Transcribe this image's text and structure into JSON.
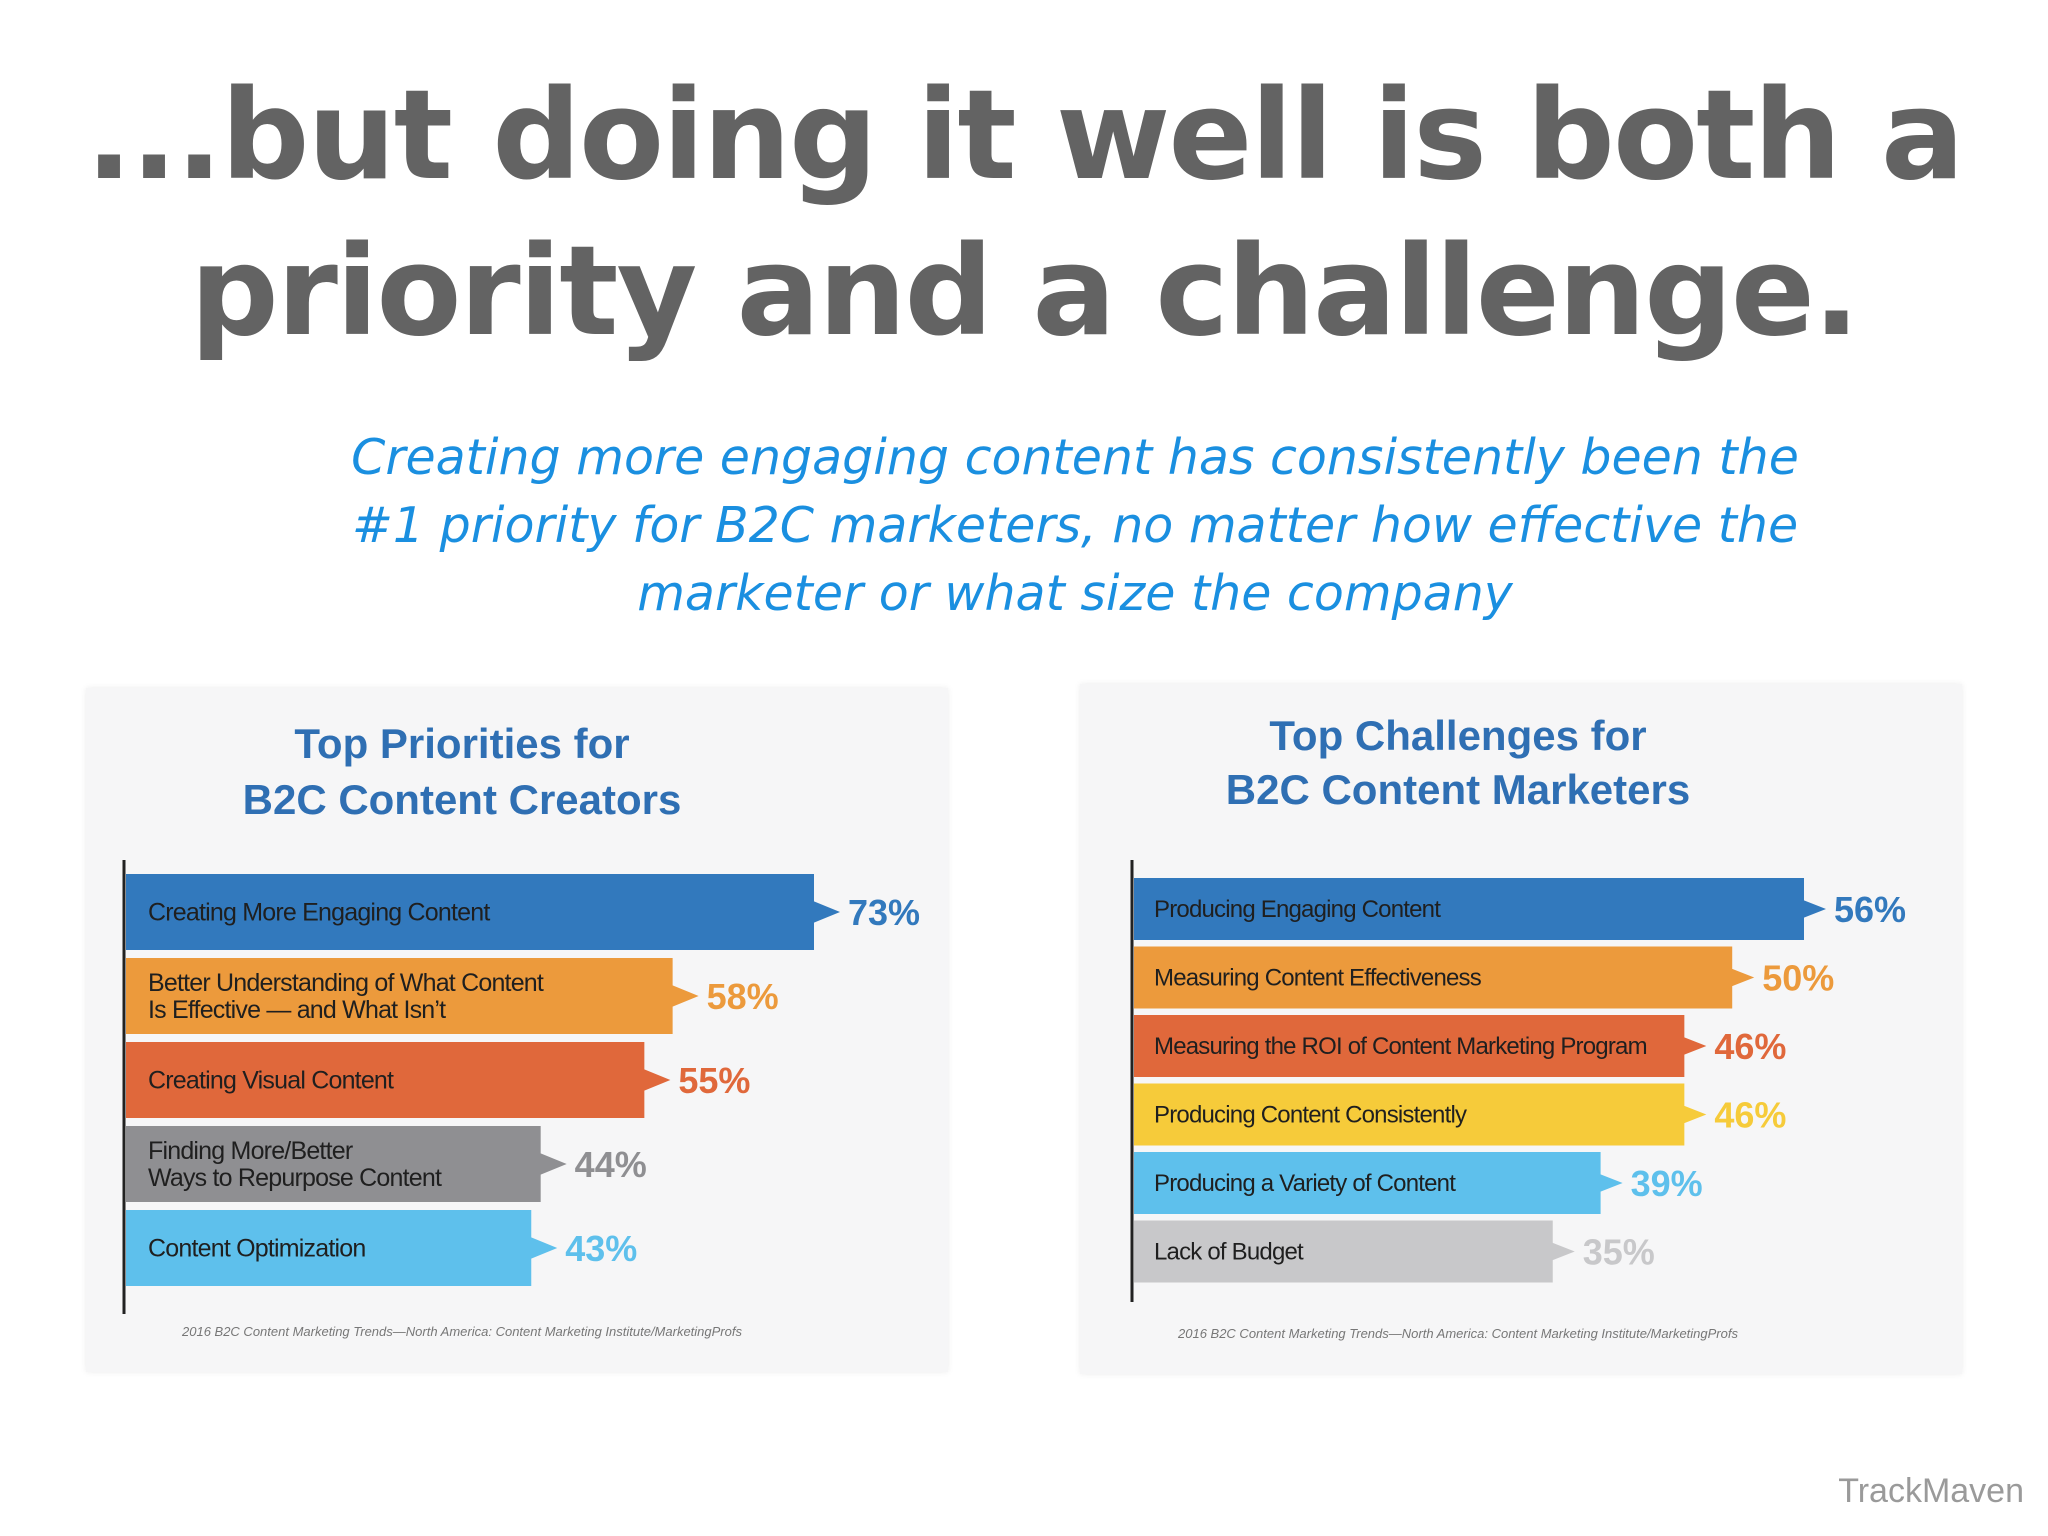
{
  "headline": {
    "line1": "...but doing it well is both a",
    "line2": "priority and a challenge."
  },
  "subtitle": {
    "line1": "Creating more engaging content has consistently been the",
    "line2": "#1 priority for B2C marketers, no matter how effective the",
    "line3": "marketer or what size the company"
  },
  "chart_data": [
    {
      "type": "bar",
      "orientation": "horizontal",
      "title_lines": [
        "Top Priorities for",
        "B2C Content Creators"
      ],
      "categories": [
        [
          "Creating More Engaging Content"
        ],
        [
          "Better Understanding of What Content",
          "Is Effective — and What Isn’t"
        ],
        [
          "Creating Visual Content"
        ],
        [
          "Finding More/Better",
          "Ways to Repurpose Content"
        ],
        [
          "Content Optimization"
        ]
      ],
      "values": [
        73,
        58,
        55,
        44,
        43
      ],
      "value_labels": [
        "73%",
        "58%",
        "55%",
        "44%",
        "43%"
      ],
      "colors": [
        "#3279bd",
        "#ec9a3c",
        "#e0683b",
        "#8f8f92",
        "#5ec0ec"
      ],
      "xlim": [
        0,
        100
      ],
      "source": "2016 B2C Content Marketing Trends—North America: Content Marketing Institute/MarketingProfs"
    },
    {
      "type": "bar",
      "orientation": "horizontal",
      "title_lines": [
        "Top Challenges for",
        "B2C Content Marketers"
      ],
      "categories": [
        [
          "Producing Engaging Content"
        ],
        [
          "Measuring Content Effectiveness"
        ],
        [
          "Measuring the ROI of Content Marketing Program"
        ],
        [
          "Producing Content Consistently"
        ],
        [
          "Producing a Variety of Content"
        ],
        [
          "Lack of Budget"
        ]
      ],
      "values": [
        56,
        50,
        46,
        46,
        39,
        35
      ],
      "value_labels": [
        "56%",
        "50%",
        "46%",
        "46%",
        "39%",
        "35%"
      ],
      "colors": [
        "#3279bd",
        "#ec9a3c",
        "#e0683b",
        "#f6cb3a",
        "#5ec0ec",
        "#c8c8ca"
      ],
      "xlim": [
        0,
        60
      ],
      "source": "2016 B2C Content Marketing Trends—North America: Content Marketing Institute/MarketingProfs"
    }
  ],
  "colors": {
    "title_blue": "#2f6fb3",
    "headline_gray": "#636363",
    "subtitle_blue": "#1a8fe0",
    "label_dark": "#2a2a2a"
  },
  "watermark": "TrackMaven"
}
